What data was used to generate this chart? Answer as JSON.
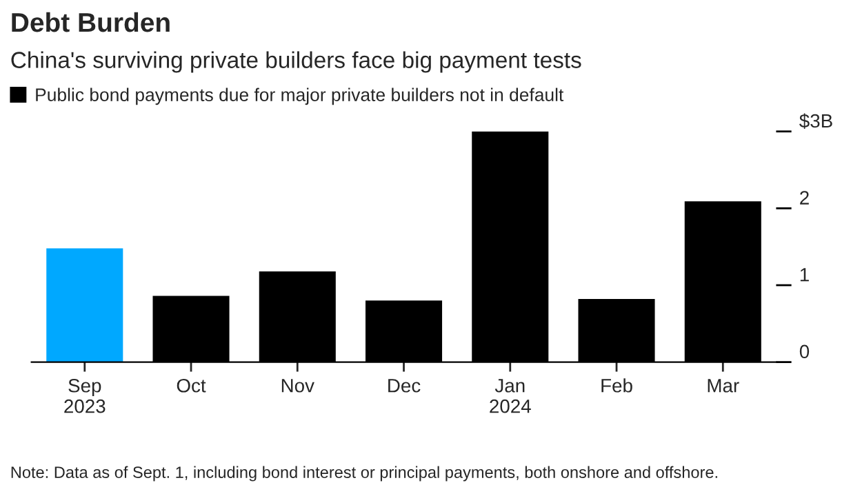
{
  "chart_data": {
    "type": "bar",
    "title": "Debt Burden",
    "subtitle": "China's surviving private builders face big payment tests",
    "categories": [
      "Sep\n2023",
      "Oct",
      "Nov",
      "Dec",
      "Jan\n2024",
      "Feb",
      "Mar"
    ],
    "series": [
      {
        "name": "Public bond payments due for major private builders not in default",
        "color": "#000000",
        "colors": [
          "#00a8ff",
          "#000000",
          "#000000",
          "#000000",
          "#000000",
          "#000000",
          "#000000"
        ],
        "values": [
          1.48,
          0.86,
          1.18,
          0.8,
          3.0,
          0.82,
          2.09
        ]
      }
    ],
    "ylim": [
      0,
      3.0
    ],
    "yticks": [
      0,
      1,
      2,
      {
        "value": 3,
        "label": "$3B"
      }
    ],
    "grid": false,
    "legend": "top left",
    "annotations": [
      "Note: Data as of Sept. 1, including bond interest or principal payments, both onshore and offshore."
    ]
  }
}
